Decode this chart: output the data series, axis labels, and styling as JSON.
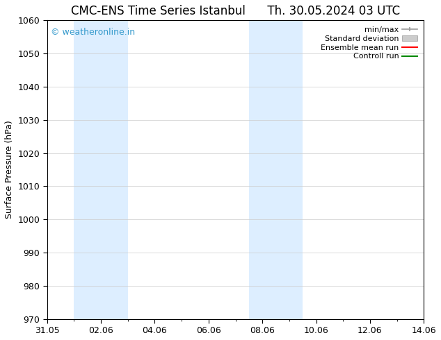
{
  "title_left": "CMC-ENS Time Series Istanbul",
  "title_right": "Th. 30.05.2024 03 UTC",
  "ylabel": "Surface Pressure (hPa)",
  "ylim": [
    970,
    1060
  ],
  "yticks": [
    970,
    980,
    990,
    1000,
    1010,
    1020,
    1030,
    1040,
    1050,
    1060
  ],
  "xlim_start": 0,
  "xlim_end": 14,
  "xtick_labels": [
    "31.05",
    "02.06",
    "04.06",
    "06.06",
    "08.06",
    "10.06",
    "12.06",
    "14.06"
  ],
  "xtick_positions": [
    0,
    2,
    4,
    6,
    8,
    10,
    12,
    14
  ],
  "shaded_bands": [
    {
      "xmin": 1.0,
      "xmax": 3.0
    },
    {
      "xmin": 7.5,
      "xmax": 9.5
    }
  ],
  "shade_color": "#ddeeff",
  "watermark_text": "© weatheronline.in",
  "watermark_color": "#3399cc",
  "legend_entries": [
    {
      "label": "min/max",
      "color": "#aaaaaa",
      "type": "errorbar"
    },
    {
      "label": "Standard deviation",
      "color": "#cccccc",
      "type": "fill"
    },
    {
      "label": "Ensemble mean run",
      "color": "#ff0000",
      "type": "line"
    },
    {
      "label": "Controll run",
      "color": "#008800",
      "type": "line"
    }
  ],
  "bg_color": "#ffffff",
  "grid_color": "#cccccc",
  "title_fontsize": 12,
  "axis_fontsize": 9,
  "tick_fontsize": 9
}
